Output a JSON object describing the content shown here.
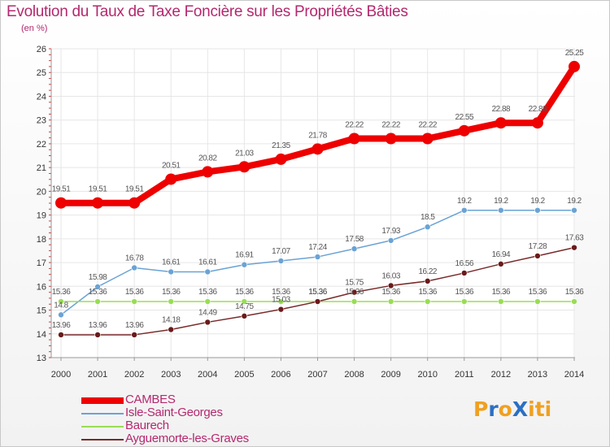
{
  "title": "Evolution du Taux de Taxe Foncière sur les Propriétés Bâties",
  "unit_label": "(en %)",
  "brand": {
    "text": "ProXiti",
    "letters": [
      "P",
      "r",
      "o",
      "X",
      "i",
      "t",
      "i"
    ],
    "colors": [
      "#f0a020",
      "#2b6fc4",
      "#f0a020",
      "#2b6fc4",
      "#f0a020",
      "#f0a020",
      "#f0a020"
    ]
  },
  "chart_data": {
    "type": "line",
    "title": "Evolution du Taux de Taxe Foncière sur les Propriétés Bâties",
    "ylabel": "(en %)",
    "xlabel": "",
    "ylim": [
      13,
      26
    ],
    "yticks": [
      13,
      14,
      15,
      16,
      17,
      18,
      19,
      20,
      21,
      22,
      23,
      24,
      25,
      26
    ],
    "x": [
      "2000",
      "2001",
      "2002",
      "2003",
      "2004",
      "2005",
      "2006",
      "2007",
      "2008",
      "2009",
      "2010",
      "2011",
      "2012",
      "2013",
      "2014"
    ],
    "grid": true,
    "legend_position": "bottom-left",
    "series": [
      {
        "name": "CAMBES",
        "color": "#ee0000",
        "marker_color": "#ee0000",
        "width": 8,
        "marker_r": 7,
        "values": [
          19.51,
          19.51,
          19.51,
          20.51,
          20.82,
          21.03,
          21.35,
          21.78,
          22.22,
          22.22,
          22.22,
          22.55,
          22.88,
          22.88,
          25.25
        ],
        "labels": [
          "19.51",
          "19.51",
          "19.51",
          "20.51",
          "20.82",
          "21.03",
          "21.35",
          "21.78",
          "22.22",
          "22.22",
          "22.22",
          "22.55",
          "22.88",
          "22.88",
          "25.25"
        ]
      },
      {
        "name": "Isle-Saint-Georges",
        "color": "#6aa3d5",
        "marker_color": "#6aa3d5",
        "width": 1.5,
        "marker_r": 3.5,
        "values": [
          14.8,
          15.98,
          16.78,
          16.61,
          16.61,
          16.91,
          17.07,
          17.24,
          17.58,
          17.93,
          18.5,
          19.2,
          19.2,
          19.2,
          19.2
        ],
        "labels": [
          "14.8",
          "15.98",
          "16.78",
          "16.61",
          "16.61",
          "16.91",
          "17.07",
          "17.24",
          "17.58",
          "17.93",
          "18.5",
          "19.2",
          "19.2",
          "19.2",
          "19.2"
        ]
      },
      {
        "name": "Baurech",
        "color": "#99dd55",
        "marker_color": "#99dd55",
        "width": 1.5,
        "marker_r": 3.5,
        "values": [
          15.36,
          15.36,
          15.36,
          15.36,
          15.36,
          15.36,
          15.36,
          15.36,
          15.36,
          15.36,
          15.36,
          15.36,
          15.36,
          15.36,
          15.36
        ],
        "labels": [
          "15.36",
          "15.36",
          "15.36",
          "15.36",
          "15.36",
          "15.36",
          "15.36",
          "15.36",
          "15.36",
          "15.36",
          "15.36",
          "15.36",
          "15.36",
          "15.36",
          "15.36"
        ]
      },
      {
        "name": "Ayguemorte-les-Graves",
        "color": "#7a2a2a",
        "marker_color": "#6a1a1a",
        "width": 1.5,
        "marker_r": 3.5,
        "values": [
          13.96,
          13.96,
          13.96,
          14.18,
          14.49,
          14.75,
          15.03,
          15.36,
          15.75,
          16.03,
          16.22,
          16.56,
          16.94,
          17.28,
          17.63
        ],
        "labels": [
          "13.96",
          "13.96",
          "13.96",
          "14.18",
          "14.49",
          "14.75",
          "15.03",
          "15.36",
          "15.75",
          "16.03",
          "16.22",
          "16.56",
          "16.94",
          "17.28",
          "17.63"
        ]
      }
    ]
  }
}
